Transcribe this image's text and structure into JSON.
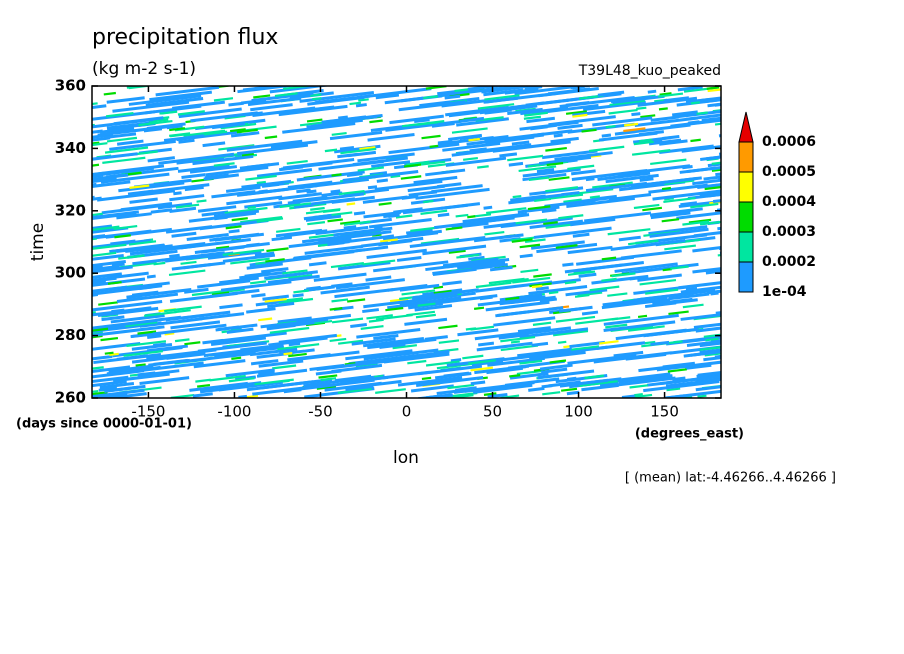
{
  "chart_data": {
    "type": "hovmoller",
    "title": "precipitation flux",
    "subtitle": "(kg m-2 s-1)",
    "experiment": "T39L48_kuo_peaked",
    "y_label": "time",
    "y_units": "(days since 0000-01-01)",
    "x_label": "lon",
    "x_units": "(degrees_east)",
    "annotation": "[ (mean) lat:-4.46266..4.46266 ]",
    "xlim": [
      -182.8,
      182.8
    ],
    "xticks": [
      -150,
      -100,
      -50,
      0,
      50,
      100,
      150
    ],
    "ylim": [
      260,
      360
    ],
    "yticks": [
      260,
      280,
      300,
      320,
      340,
      360
    ],
    "colorbar": {
      "levels": [
        {
          "value": 0.0001,
          "label": "1e-04"
        },
        0.0002,
        0.0003,
        0.0004,
        0.0005,
        0.0006
      ],
      "colors": [
        "#1e9bff",
        "#00e6a0",
        "#00dc00",
        "#ffff00",
        "#ff9a00"
      ],
      "over_color": "#e60000"
    }
  }
}
